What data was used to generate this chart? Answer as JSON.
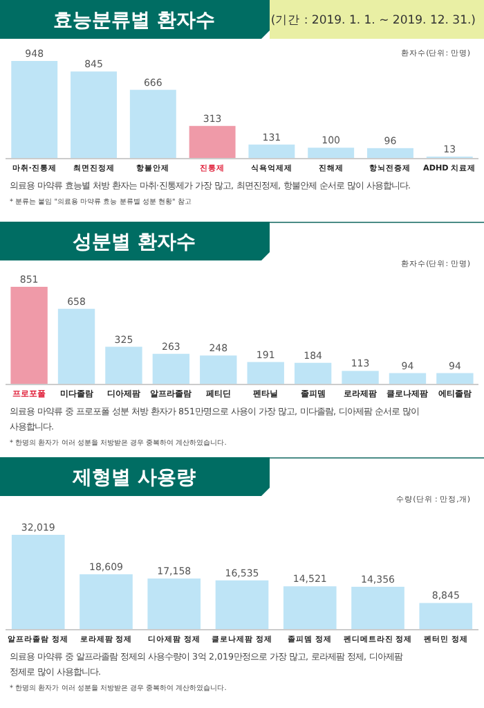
{
  "chart_data": [
    {
      "type": "bar",
      "title": "효능분류별 환자수",
      "subtitle": "(기간 : 2019. 1. 1. ~ 2019. 12. 31.)",
      "categories": [
        "마취·진통제",
        "최면진정제",
        "항불안제",
        "진통제",
        "식욕억제제",
        "진해제",
        "항뇌전증제",
        "ADHD 치료제"
      ],
      "values": [
        948,
        845,
        666,
        313,
        131,
        100,
        96,
        13
      ],
      "colors": [
        "#bee4f6",
        "#bee4f6",
        "#bee4f6",
        "#ef9aa8",
        "#bee4f6",
        "#bee4f6",
        "#bee4f6",
        "#bee4f6"
      ],
      "data_labels": true,
      "annotations": [
        "환자수(단위: 만명)",
        "의료용 마약류 효능별 처방 환자는 마취·진통제가 가장 많고, 최면진정제, 항불안제 순서로 많이 사용합니다.",
        "* 분류는 붙임 \"의료용 마약류 효능 분류별 성분 현황\" 참고"
      ]
    },
    {
      "type": "bar",
      "title": "성분별 환자수",
      "categories": [
        "프로포폴",
        "미다졸람",
        "디아제팜",
        "알프라졸람",
        "페티딘",
        "펜타닐",
        "졸피뎀",
        "로라제팜",
        "클로나제팜",
        "에티졸람"
      ],
      "values": [
        851,
        658,
        325,
        263,
        248,
        191,
        184,
        113,
        94,
        94
      ],
      "colors": [
        "#ef9aa8",
        "#bee4f6",
        "#bee4f6",
        "#bee4f6",
        "#bee4f6",
        "#bee4f6",
        "#bee4f6",
        "#bee4f6",
        "#bee4f6",
        "#bee4f6"
      ],
      "data_labels": true,
      "annotations": [
        "환자수(단위: 만명)",
        "의료용 마약류 중 프로포폴 성분 처방 환자가 851만명으로 사용이 가장 많고, 미다졸람, 디아제팜 순서로 많이 사용합니다.",
        "* 한명의 환자가 여러 성분을 처방받은 경우 중복하여 계산하였습니다."
      ]
    },
    {
      "type": "bar",
      "title": "제형별 사용량",
      "categories": [
        "알프라졸람 정제",
        "로라제팜 정제",
        "디아제팜 정제",
        "클로나제팜 정제",
        "졸피뎀 정제",
        "펜디메트라진 정제",
        "펜터민 정제"
      ],
      "values": [
        32019,
        18609,
        17158,
        16535,
        14521,
        14356,
        8845
      ],
      "colors": [
        "#bee4f6",
        "#bee4f6",
        "#bee4f6",
        "#bee4f6",
        "#bee4f6",
        "#bee4f6",
        "#bee4f6"
      ],
      "value_labels": [
        "32,019",
        "18,609",
        "17,158",
        "16,535",
        "14,521",
        "14,356",
        "8,845"
      ],
      "annotations": [
        "수량(단위 : 만정,개)",
        "의료용 마약류 중 알프라졸람 정제의 사용수량이 3억 2,019만정으로 가장 많고, 로라제팜 정제, 디아제팜 정제로 많이 사용합니다.",
        "* 한명의 환자가 여러 성분을 처방받은 경우 중복하여 계산하였습니다."
      ]
    }
  ]
}
